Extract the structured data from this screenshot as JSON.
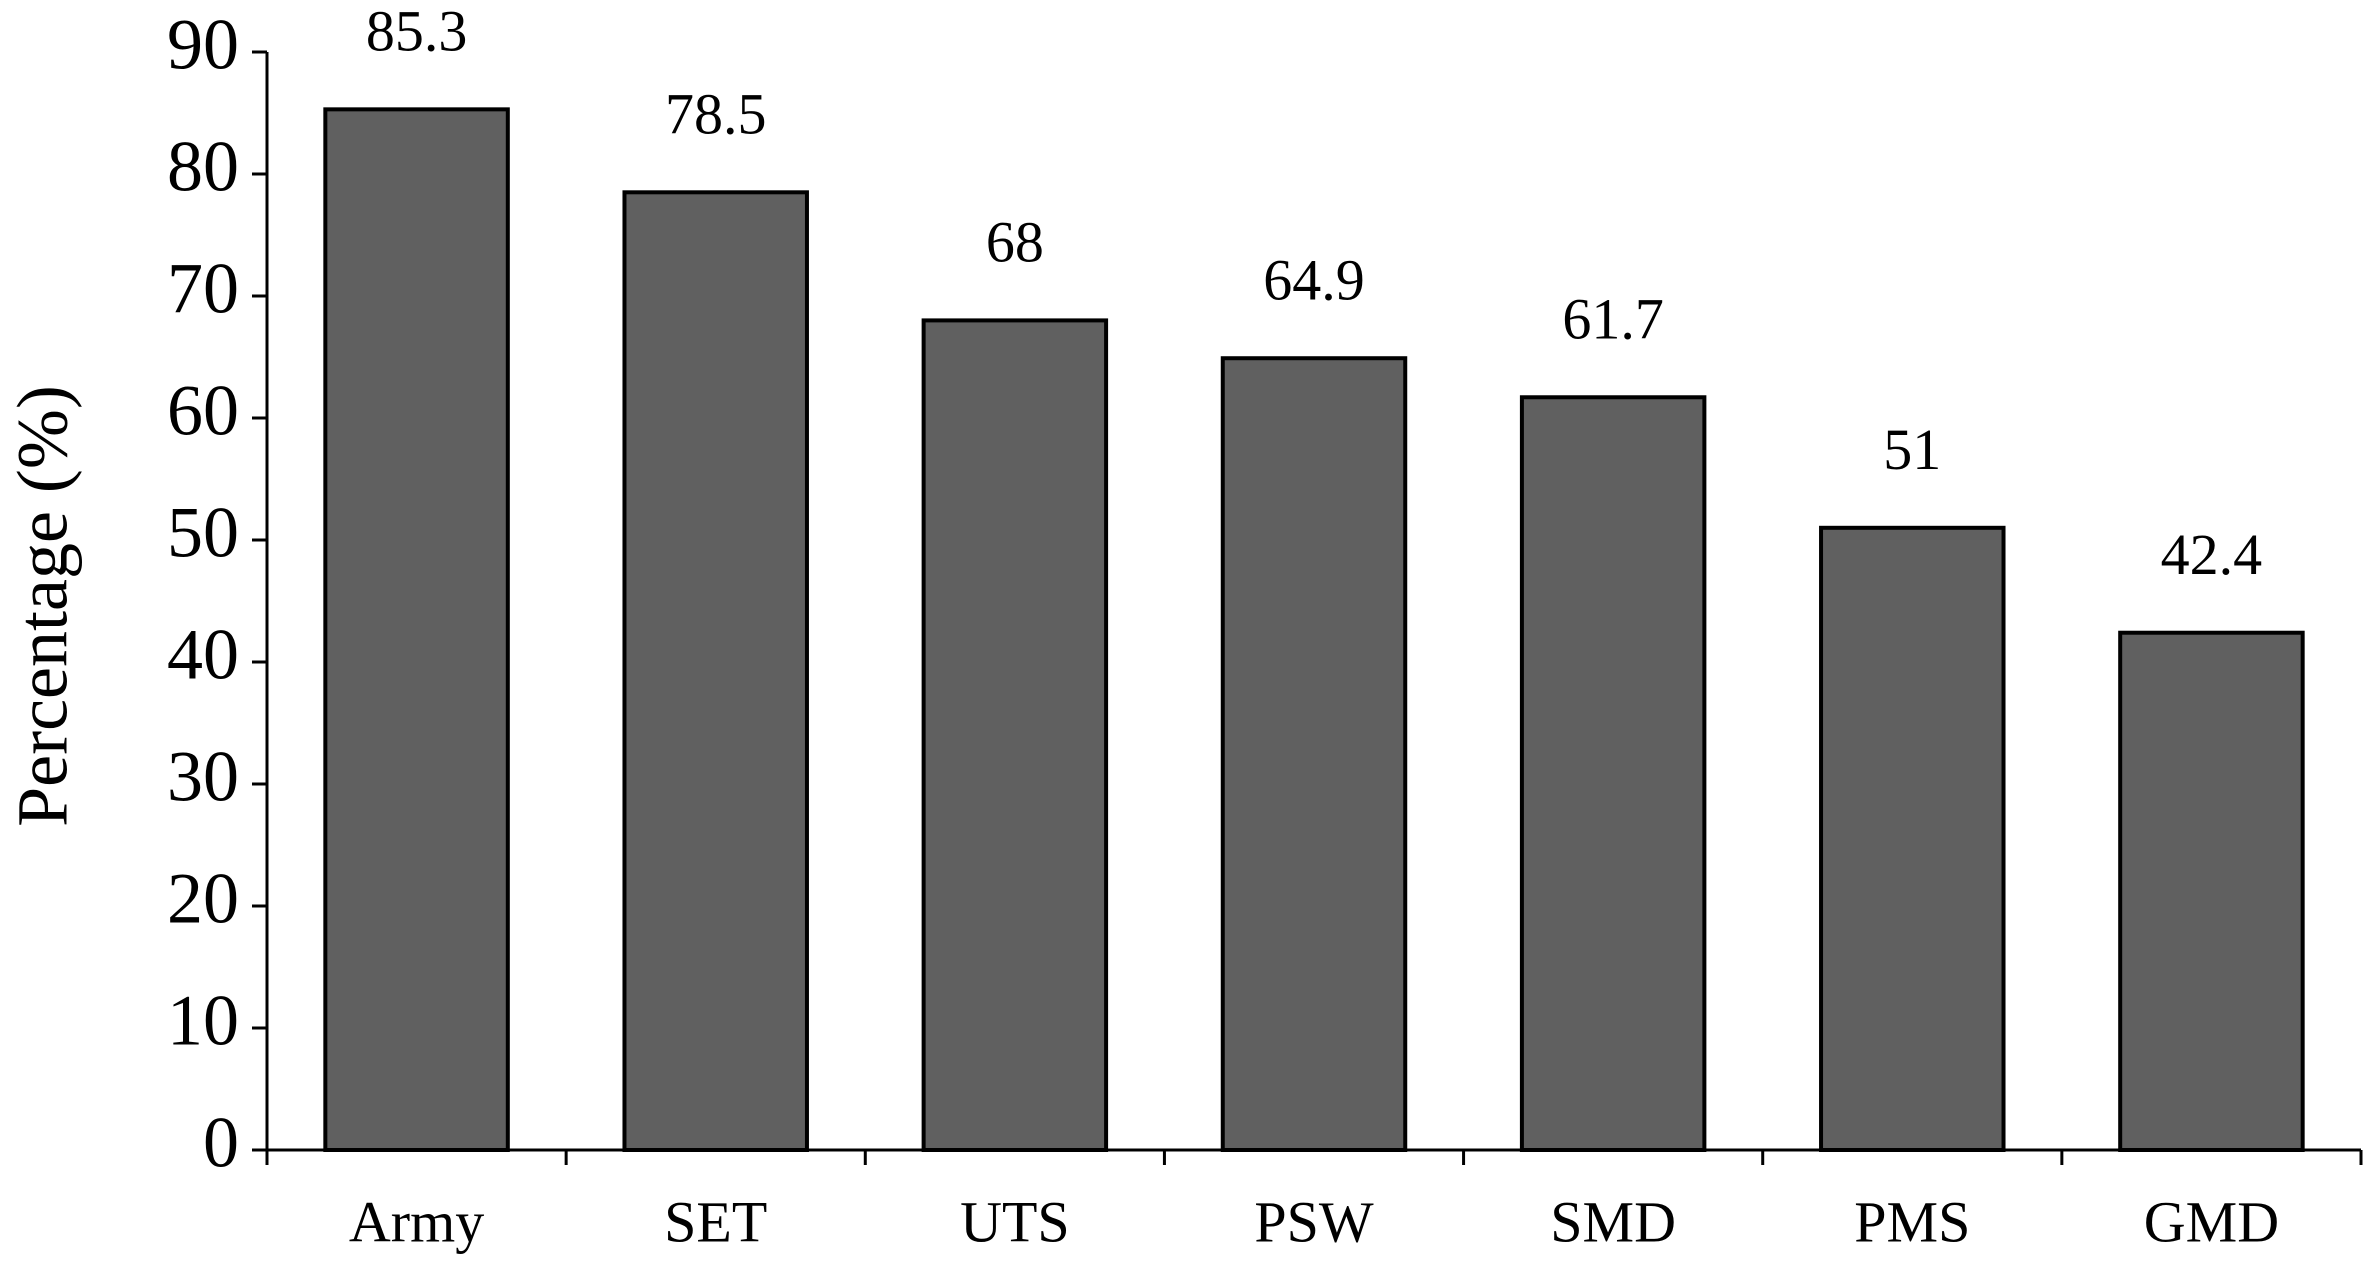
{
  "chart_data": {
    "type": "bar",
    "y_label": "Percentage (%)",
    "categories": [
      "Army",
      "SET",
      "UTS",
      "PSW",
      "SMD",
      "PMS",
      "GMD"
    ],
    "values": [
      85.3,
      78.5,
      68,
      64.9,
      61.7,
      51,
      42.4
    ],
    "color": "#606060",
    "ylim": [
      0,
      90
    ],
    "yticks": [
      0,
      10,
      20,
      30,
      40,
      50,
      60,
      70,
      80,
      90
    ],
    "grid": false
  }
}
